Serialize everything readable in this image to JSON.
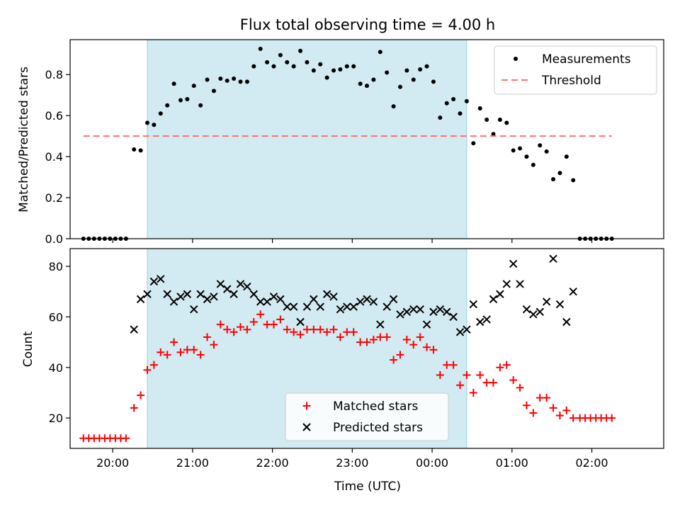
{
  "figure": {
    "title": "Flux total observing time = 4.00 h"
  },
  "chart_data": [
    {
      "type": "scatter",
      "title": "Flux total observing time = 4.00 h",
      "ylabel": "Matched/Predicted stars",
      "xlabel": "",
      "xlim": [
        "19:28",
        "02:54"
      ],
      "ylim": [
        0,
        0.97
      ],
      "yticks": [
        "0.0",
        "0.2",
        "0.4",
        "0.6",
        "0.8"
      ],
      "xticks": [
        "20:00",
        "21:00",
        "22:00",
        "23:00",
        "00:00",
        "01:00",
        "02:00"
      ],
      "grid": false,
      "legend_position": "upper right",
      "shaded_span": {
        "start": "20:26",
        "end": "00:26",
        "color": "#add8e6"
      },
      "series": [
        {
          "name": "Measurements",
          "kind": "scatter",
          "marker": "dot",
          "color": "#000000",
          "points": [
            [
              "19:38",
              0
            ],
            [
              "19:42",
              0
            ],
            [
              "19:46",
              0
            ],
            [
              "19:50",
              0
            ],
            [
              "19:54",
              0
            ],
            [
              "19:58",
              0
            ],
            [
              "20:02",
              0
            ],
            [
              "20:06",
              0
            ],
            [
              "20:10",
              0
            ],
            [
              "20:16",
              0.435
            ],
            [
              "20:21",
              0.43
            ],
            [
              "20:26",
              0.565
            ],
            [
              "20:31",
              0.555
            ],
            [
              "20:36",
              0.61
            ],
            [
              "20:41",
              0.65
            ],
            [
              "20:46",
              0.755
            ],
            [
              "20:51",
              0.675
            ],
            [
              "20:56",
              0.68
            ],
            [
              "21:01",
              0.745
            ],
            [
              "21:06",
              0.65
            ],
            [
              "21:11",
              0.775
            ],
            [
              "21:16",
              0.72
            ],
            [
              "21:21",
              0.78
            ],
            [
              "21:26",
              0.77
            ],
            [
              "21:31",
              0.78
            ],
            [
              "21:36",
              0.765
            ],
            [
              "21:41",
              0.765
            ],
            [
              "21:46",
              0.84
            ],
            [
              "21:51",
              0.925
            ],
            [
              "21:56",
              0.86
            ],
            [
              "22:01",
              0.84
            ],
            [
              "22:06",
              0.895
            ],
            [
              "22:11",
              0.86
            ],
            [
              "22:16",
              0.84
            ],
            [
              "22:21",
              0.915
            ],
            [
              "22:26",
              0.86
            ],
            [
              "22:31",
              0.82
            ],
            [
              "22:36",
              0.85
            ],
            [
              "22:41",
              0.785
            ],
            [
              "22:46",
              0.82
            ],
            [
              "22:51",
              0.825
            ],
            [
              "22:56",
              0.84
            ],
            [
              "23:01",
              0.84
            ],
            [
              "23:06",
              0.755
            ],
            [
              "23:11",
              0.745
            ],
            [
              "23:16",
              0.775
            ],
            [
              "23:21",
              0.91
            ],
            [
              "23:26",
              0.81
            ],
            [
              "23:31",
              0.645
            ],
            [
              "23:36",
              0.74
            ],
            [
              "23:41",
              0.82
            ],
            [
              "23:46",
              0.775
            ],
            [
              "23:51",
              0.825
            ],
            [
              "23:56",
              0.84
            ],
            [
              "00:01",
              0.765
            ],
            [
              "00:06",
              0.59
            ],
            [
              "00:11",
              0.66
            ],
            [
              "00:16",
              0.68
            ],
            [
              "00:21",
              0.61
            ],
            [
              "00:26",
              0.67
            ],
            [
              "00:31",
              0.465
            ],
            [
              "00:36",
              0.635
            ],
            [
              "00:41",
              0.58
            ],
            [
              "00:46",
              0.51
            ],
            [
              "00:51",
              0.58
            ],
            [
              "00:56",
              0.565
            ],
            [
              "01:01",
              0.43
            ],
            [
              "01:06",
              0.44
            ],
            [
              "01:11",
              0.4
            ],
            [
              "01:16",
              0.36
            ],
            [
              "01:21",
              0.455
            ],
            [
              "01:26",
              0.425
            ],
            [
              "01:31",
              0.29
            ],
            [
              "01:36",
              0.32
            ],
            [
              "01:41",
              0.4
            ],
            [
              "01:46",
              0.285
            ],
            [
              "01:51",
              0
            ],
            [
              "01:55",
              0
            ],
            [
              "01:59",
              0
            ],
            [
              "02:03",
              0
            ],
            [
              "02:07",
              0
            ],
            [
              "02:11",
              0
            ],
            [
              "02:15",
              0
            ]
          ]
        },
        {
          "name": "Threshold",
          "kind": "line",
          "dash": true,
          "color": "#ff7070",
          "points": [
            [
              "19:38",
              0.5
            ],
            [
              "02:15",
              0.5
            ]
          ]
        }
      ]
    },
    {
      "type": "scatter",
      "title": "",
      "ylabel": "Count",
      "xlabel": "Time (UTC)",
      "xlim": [
        "19:28",
        "02:54"
      ],
      "ylim": [
        8,
        87
      ],
      "yticks": [
        "20",
        "40",
        "60",
        "80"
      ],
      "xticks": [
        "20:00",
        "21:00",
        "22:00",
        "23:00",
        "00:00",
        "01:00",
        "02:00"
      ],
      "grid": false,
      "legend_position": "lower center",
      "shaded_span": {
        "start": "20:26",
        "end": "00:26",
        "color": "#add8e6"
      },
      "series": [
        {
          "name": "Matched stars",
          "kind": "scatter",
          "marker": "plus",
          "color": "#ff0000",
          "points": [
            [
              "19:38",
              12
            ],
            [
              "19:42",
              12
            ],
            [
              "19:46",
              12
            ],
            [
              "19:50",
              12
            ],
            [
              "19:54",
              12
            ],
            [
              "19:58",
              12
            ],
            [
              "20:02",
              12
            ],
            [
              "20:06",
              12
            ],
            [
              "20:10",
              12
            ],
            [
              "20:16",
              24
            ],
            [
              "20:21",
              29
            ],
            [
              "20:26",
              39
            ],
            [
              "20:31",
              41
            ],
            [
              "20:36",
              46
            ],
            [
              "20:41",
              45
            ],
            [
              "20:46",
              50
            ],
            [
              "20:51",
              46
            ],
            [
              "20:56",
              47
            ],
            [
              "21:01",
              47
            ],
            [
              "21:06",
              45
            ],
            [
              "21:11",
              52
            ],
            [
              "21:16",
              49
            ],
            [
              "21:21",
              57
            ],
            [
              "21:26",
              55
            ],
            [
              "21:31",
              54
            ],
            [
              "21:36",
              56
            ],
            [
              "21:41",
              55
            ],
            [
              "21:46",
              58
            ],
            [
              "21:51",
              61
            ],
            [
              "21:56",
              57
            ],
            [
              "22:01",
              57
            ],
            [
              "22:06",
              59
            ],
            [
              "22:11",
              55
            ],
            [
              "22:16",
              54
            ],
            [
              "22:21",
              53
            ],
            [
              "22:26",
              55
            ],
            [
              "22:31",
              55
            ],
            [
              "22:36",
              55
            ],
            [
              "22:41",
              54
            ],
            [
              "22:46",
              55
            ],
            [
              "22:51",
              52
            ],
            [
              "22:56",
              54
            ],
            [
              "23:01",
              54
            ],
            [
              "23:06",
              50
            ],
            [
              "23:11",
              50
            ],
            [
              "23:16",
              51
            ],
            [
              "23:21",
              52
            ],
            [
              "23:26",
              52
            ],
            [
              "23:31",
              43
            ],
            [
              "23:36",
              45
            ],
            [
              "23:41",
              51
            ],
            [
              "23:46",
              49
            ],
            [
              "23:51",
              52
            ],
            [
              "23:56",
              48
            ],
            [
              "00:01",
              47
            ],
            [
              "00:06",
              37
            ],
            [
              "00:11",
              41
            ],
            [
              "00:16",
              41
            ],
            [
              "00:21",
              33
            ],
            [
              "00:26",
              37
            ],
            [
              "00:31",
              30
            ],
            [
              "00:36",
              37
            ],
            [
              "00:41",
              34
            ],
            [
              "00:46",
              34
            ],
            [
              "00:51",
              40
            ],
            [
              "00:56",
              41
            ],
            [
              "01:01",
              35
            ],
            [
              "01:06",
              32
            ],
            [
              "01:11",
              25
            ],
            [
              "01:16",
              22
            ],
            [
              "01:21",
              28
            ],
            [
              "01:26",
              28
            ],
            [
              "01:31",
              24
            ],
            [
              "01:36",
              21
            ],
            [
              "01:41",
              23
            ],
            [
              "01:46",
              20
            ],
            [
              "01:51",
              20
            ],
            [
              "01:55",
              20
            ],
            [
              "01:59",
              20
            ],
            [
              "02:03",
              20
            ],
            [
              "02:07",
              20
            ],
            [
              "02:11",
              20
            ],
            [
              "02:15",
              20
            ]
          ]
        },
        {
          "name": "Predicted stars",
          "kind": "scatter",
          "marker": "x",
          "color": "#000000",
          "points": [
            [
              "20:16",
              55
            ],
            [
              "20:21",
              67
            ],
            [
              "20:26",
              69
            ],
            [
              "20:31",
              74
            ],
            [
              "20:36",
              75
            ],
            [
              "20:41",
              69
            ],
            [
              "20:46",
              66
            ],
            [
              "20:51",
              68
            ],
            [
              "20:56",
              69
            ],
            [
              "21:01",
              63
            ],
            [
              "21:06",
              69
            ],
            [
              "21:11",
              67
            ],
            [
              "21:16",
              68
            ],
            [
              "21:21",
              73
            ],
            [
              "21:26",
              71
            ],
            [
              "21:31",
              69
            ],
            [
              "21:36",
              73
            ],
            [
              "21:41",
              72
            ],
            [
              "21:46",
              69
            ],
            [
              "21:51",
              66
            ],
            [
              "21:56",
              66
            ],
            [
              "22:01",
              68
            ],
            [
              "22:06",
              67
            ],
            [
              "22:11",
              64
            ],
            [
              "22:16",
              64
            ],
            [
              "22:21",
              58
            ],
            [
              "22:26",
              64
            ],
            [
              "22:31",
              67
            ],
            [
              "22:36",
              64
            ],
            [
              "22:41",
              69
            ],
            [
              "22:46",
              68
            ],
            [
              "22:51",
              63
            ],
            [
              "22:56",
              64
            ],
            [
              "23:01",
              64
            ],
            [
              "23:06",
              66
            ],
            [
              "23:11",
              67
            ],
            [
              "23:16",
              66
            ],
            [
              "23:21",
              57
            ],
            [
              "23:26",
              64
            ],
            [
              "23:31",
              67
            ],
            [
              "23:36",
              61
            ],
            [
              "23:41",
              62
            ],
            [
              "23:46",
              63
            ],
            [
              "23:51",
              63
            ],
            [
              "23:56",
              57
            ],
            [
              "00:01",
              62
            ],
            [
              "00:06",
              63
            ],
            [
              "00:11",
              62
            ],
            [
              "00:16",
              60
            ],
            [
              "00:21",
              54
            ],
            [
              "00:26",
              55
            ],
            [
              "00:31",
              65
            ],
            [
              "00:36",
              58
            ],
            [
              "00:41",
              59
            ],
            [
              "00:46",
              67
            ],
            [
              "00:51",
              69
            ],
            [
              "00:56",
              73
            ],
            [
              "01:01",
              81
            ],
            [
              "01:06",
              73
            ],
            [
              "01:11",
              63
            ],
            [
              "01:16",
              61
            ],
            [
              "01:21",
              62
            ],
            [
              "01:26",
              66
            ],
            [
              "01:31",
              83
            ],
            [
              "01:36",
              65
            ],
            [
              "01:41",
              58
            ],
            [
              "01:46",
              70
            ]
          ]
        }
      ]
    }
  ]
}
